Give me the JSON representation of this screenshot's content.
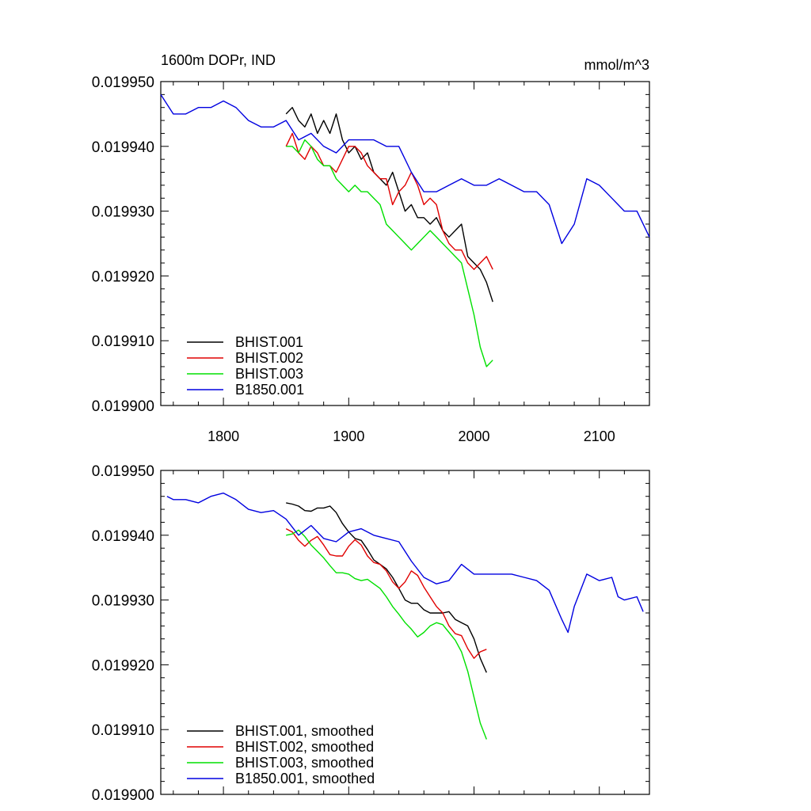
{
  "chart_data": [
    {
      "type": "line",
      "title": "1600m DOPr, IND",
      "units": "mmol/m^3",
      "xlim": [
        1750,
        2140
      ],
      "ylim": [
        0.0199,
        0.01995
      ],
      "x_ticks": [
        1800,
        1900,
        2000,
        2100
      ],
      "x_tick_labels": [
        "1800",
        "1900",
        "2000",
        "2100"
      ],
      "y_ticks": [
        0.0199,
        0.01991,
        0.01992,
        0.01993,
        0.01994,
        0.01995
      ],
      "y_tick_labels": [
        "0.019900",
        "0.019910",
        "0.019920",
        "0.019930",
        "0.019940",
        "0.019950"
      ],
      "legend_position": "bottom-left",
      "series": [
        {
          "name": "BHIST.001",
          "color": "#000000",
          "x": [
            1850,
            1855,
            1860,
            1865,
            1870,
            1875,
            1880,
            1885,
            1890,
            1895,
            1900,
            1905,
            1910,
            1915,
            1920,
            1925,
            1930,
            1935,
            1940,
            1945,
            1950,
            1955,
            1960,
            1965,
            1970,
            1975,
            1980,
            1985,
            1990,
            1995,
            2000,
            2005,
            2010,
            2015
          ],
          "y": [
            0.019945,
            0.019946,
            0.019944,
            0.019943,
            0.019945,
            0.019942,
            0.019944,
            0.019942,
            0.019945,
            0.019941,
            0.019939,
            0.01994,
            0.019938,
            0.019939,
            0.019936,
            0.019935,
            0.019934,
            0.019936,
            0.019933,
            0.01993,
            0.019931,
            0.019929,
            0.019929,
            0.019928,
            0.019929,
            0.019927,
            0.019926,
            0.019927,
            0.019928,
            0.019923,
            0.019922,
            0.019921,
            0.019919,
            0.019916
          ]
        },
        {
          "name": "BHIST.002",
          "color": "#e00000",
          "x": [
            1850,
            1855,
            1860,
            1865,
            1870,
            1875,
            1880,
            1885,
            1890,
            1895,
            1900,
            1905,
            1910,
            1915,
            1920,
            1925,
            1930,
            1935,
            1940,
            1945,
            1950,
            1955,
            1960,
            1965,
            1970,
            1975,
            1980,
            1985,
            1990,
            1995,
            2000,
            2005,
            2010,
            2015
          ],
          "y": [
            0.01994,
            0.019942,
            0.019939,
            0.019938,
            0.01994,
            0.019939,
            0.019937,
            0.019937,
            0.019936,
            0.019938,
            0.01994,
            0.01994,
            0.019939,
            0.019937,
            0.019936,
            0.019935,
            0.019935,
            0.019931,
            0.019933,
            0.019934,
            0.019936,
            0.019934,
            0.019931,
            0.019932,
            0.019931,
            0.019927,
            0.019925,
            0.019924,
            0.019924,
            0.019922,
            0.019921,
            0.019922,
            0.019923,
            0.019921
          ]
        },
        {
          "name": "BHIST.003",
          "color": "#00e000",
          "x": [
            1850,
            1855,
            1860,
            1865,
            1870,
            1875,
            1880,
            1885,
            1890,
            1895,
            1900,
            1905,
            1910,
            1915,
            1920,
            1925,
            1930,
            1935,
            1940,
            1945,
            1950,
            1955,
            1960,
            1965,
            1970,
            1975,
            1980,
            1985,
            1990,
            1995,
            2000,
            2005,
            2010,
            2015
          ],
          "y": [
            0.01994,
            0.01994,
            0.019939,
            0.019941,
            0.01994,
            0.019938,
            0.019937,
            0.019937,
            0.019935,
            0.019934,
            0.019933,
            0.019934,
            0.019933,
            0.019933,
            0.019932,
            0.019931,
            0.019928,
            0.019927,
            0.019926,
            0.019925,
            0.019924,
            0.019925,
            0.019926,
            0.019927,
            0.019926,
            0.019925,
            0.019924,
            0.019923,
            0.019922,
            0.019918,
            0.019914,
            0.019909,
            0.019906,
            0.019907
          ]
        },
        {
          "name": "B1850.001",
          "color": "#0000e0",
          "x": [
            1750,
            1760,
            1770,
            1780,
            1790,
            1800,
            1810,
            1820,
            1830,
            1840,
            1850,
            1860,
            1870,
            1880,
            1890,
            1900,
            1910,
            1920,
            1930,
            1940,
            1950,
            1960,
            1970,
            1980,
            1990,
            2000,
            2010,
            2020,
            2030,
            2040,
            2050,
            2060,
            2070,
            2080,
            2090,
            2100,
            2110,
            2120,
            2130,
            2140
          ],
          "y": [
            0.019948,
            0.019945,
            0.019945,
            0.019946,
            0.019946,
            0.019947,
            0.019946,
            0.019944,
            0.019943,
            0.019943,
            0.019944,
            0.019941,
            0.019942,
            0.01994,
            0.019939,
            0.019941,
            0.019941,
            0.019941,
            0.01994,
            0.01994,
            0.019936,
            0.019933,
            0.019933,
            0.019934,
            0.019935,
            0.019934,
            0.019934,
            0.019935,
            0.019934,
            0.019933,
            0.019933,
            0.019931,
            0.019925,
            0.019928,
            0.019935,
            0.019934,
            0.019932,
            0.01993,
            0.01993,
            0.019926
          ]
        }
      ]
    },
    {
      "type": "line",
      "xlim": [
        1750,
        2140
      ],
      "ylim": [
        0.0199,
        0.01995
      ],
      "x_ticks": [
        1800,
        1900,
        2000,
        2100
      ],
      "y_ticks": [
        0.0199,
        0.01991,
        0.01992,
        0.01993,
        0.01994,
        0.01995
      ],
      "y_tick_labels": [
        "0.019900",
        "0.019910",
        "0.019920",
        "0.019930",
        "0.019940",
        "0.019950"
      ],
      "legend_position": "bottom-left",
      "series": [
        {
          "name": "BHIST.001, smoothed",
          "color": "#000000",
          "x": [
            1850,
            1855,
            1860,
            1865,
            1870,
            1875,
            1880,
            1885,
            1890,
            1895,
            1900,
            1905,
            1910,
            1915,
            1920,
            1925,
            1930,
            1935,
            1940,
            1945,
            1950,
            1955,
            1960,
            1965,
            1970,
            1975,
            1980,
            1985,
            1990,
            1995,
            2000,
            2005,
            2010
          ],
          "y": [
            0.019945,
            0.0199448,
            0.0199445,
            0.0199438,
            0.0199437,
            0.0199442,
            0.0199442,
            0.0199445,
            0.0199435,
            0.0199418,
            0.0199405,
            0.0199395,
            0.0199392,
            0.0199378,
            0.0199362,
            0.0199355,
            0.0199348,
            0.0199335,
            0.0199318,
            0.01993,
            0.0199295,
            0.0199295,
            0.0199285,
            0.019928,
            0.019928,
            0.019928,
            0.0199282,
            0.019927,
            0.0199265,
            0.019926,
            0.019924,
            0.019921,
            0.0199188
          ]
        },
        {
          "name": "BHIST.002, smoothed",
          "color": "#e00000",
          "x": [
            1850,
            1855,
            1860,
            1865,
            1870,
            1875,
            1880,
            1885,
            1890,
            1895,
            1900,
            1905,
            1910,
            1915,
            1920,
            1925,
            1930,
            1935,
            1940,
            1945,
            1950,
            1955,
            1960,
            1965,
            1970,
            1975,
            1980,
            1985,
            1990,
            1995,
            2000,
            2005,
            2010
          ],
          "y": [
            0.019941,
            0.0199405,
            0.0199392,
            0.0199383,
            0.0199392,
            0.0199398,
            0.0199385,
            0.019937,
            0.0199368,
            0.0199368,
            0.0199383,
            0.0199393,
            0.0199385,
            0.0199368,
            0.0199358,
            0.0199355,
            0.0199345,
            0.0199328,
            0.0199318,
            0.0199328,
            0.0199345,
            0.0199338,
            0.019932,
            0.0199305,
            0.019929,
            0.019928,
            0.019926,
            0.0199248,
            0.0199245,
            0.0199225,
            0.019921,
            0.019922,
            0.0199224
          ]
        },
        {
          "name": "BHIST.003, smoothed",
          "color": "#00e000",
          "x": [
            1850,
            1855,
            1860,
            1865,
            1870,
            1875,
            1880,
            1885,
            1890,
            1895,
            1900,
            1905,
            1910,
            1915,
            1920,
            1925,
            1930,
            1935,
            1940,
            1945,
            1950,
            1955,
            1960,
            1965,
            1970,
            1975,
            1980,
            1985,
            1990,
            1995,
            2000,
            2005,
            2010
          ],
          "y": [
            0.01994,
            0.0199402,
            0.0199408,
            0.0199398,
            0.0199385,
            0.0199375,
            0.0199365,
            0.0199353,
            0.0199342,
            0.0199342,
            0.019934,
            0.0199333,
            0.019933,
            0.0199332,
            0.0199325,
            0.0199318,
            0.0199305,
            0.019929,
            0.0199278,
            0.0199265,
            0.0199255,
            0.0199243,
            0.019925,
            0.019926,
            0.0199265,
            0.0199262,
            0.019925,
            0.0199238,
            0.019922,
            0.019919,
            0.019915,
            0.019911,
            0.0199085
          ]
        },
        {
          "name": "B1850.001, smoothed",
          "color": "#0000e0",
          "x": [
            1755,
            1760,
            1770,
            1780,
            1790,
            1800,
            1810,
            1820,
            1830,
            1840,
            1850,
            1860,
            1870,
            1880,
            1890,
            1900,
            1910,
            1920,
            1930,
            1940,
            1950,
            1960,
            1970,
            1980,
            1990,
            2000,
            2010,
            2020,
            2030,
            2040,
            2050,
            2060,
            2070,
            2075,
            2080,
            2090,
            2100,
            2110,
            2115,
            2120,
            2130,
            2135
          ],
          "y": [
            0.019946,
            0.0199455,
            0.0199455,
            0.019945,
            0.019946,
            0.0199465,
            0.0199455,
            0.019944,
            0.0199435,
            0.0199438,
            0.0199425,
            0.01994,
            0.0199415,
            0.0199395,
            0.019939,
            0.0199405,
            0.019941,
            0.01994,
            0.0199395,
            0.019939,
            0.019936,
            0.0199335,
            0.0199325,
            0.019933,
            0.0199355,
            0.019934,
            0.019934,
            0.019934,
            0.019934,
            0.0199335,
            0.019933,
            0.0199315,
            0.019927,
            0.019925,
            0.019929,
            0.019934,
            0.019933,
            0.0199335,
            0.0199305,
            0.01993,
            0.0199305,
            0.0199282
          ]
        }
      ]
    }
  ]
}
